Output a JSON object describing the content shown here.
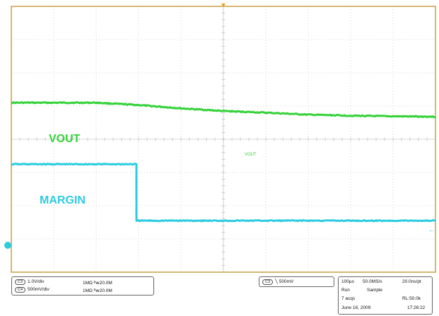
{
  "chart_data": {
    "type": "line",
    "x_unit": "µs",
    "y_unit": "div",
    "x": [
      0,
      100,
      200,
      300,
      400,
      500,
      600,
      700,
      800,
      900,
      1000
    ],
    "series": [
      {
        "name": "VOUT",
        "color": "#35d23a",
        "values": [
          1.1,
          1.1,
          1.1,
          1.03,
          0.93,
          0.85,
          0.8,
          0.74,
          0.71,
          0.69,
          0.68
        ]
      },
      {
        "name": "MARGIN",
        "color": "#2ecce0",
        "values": [
          -0.75,
          -0.75,
          -0.75,
          -2.45,
          -2.45,
          -2.45,
          -2.45,
          -2.45,
          -2.45,
          -2.45,
          -2.45
        ],
        "step_at": 295
      }
    ],
    "xlim": [
      0,
      1000
    ],
    "ylim": [
      -4,
      4
    ],
    "grid": true,
    "annotations": {
      "vout_big": "VOUT",
      "vout_small": "VOUT",
      "margin_big": "MARGIN"
    }
  },
  "status": {
    "ch1_badge": "C3",
    "ch1_scale": "1.0V/div",
    "ch1_imp": "1MΩ",
    "ch1_bw": "20.0M",
    "ch2_badge": "C4",
    "ch2_scale": "500mV/div",
    "ch2_imp": "1MΩ",
    "ch2_bw": "20.0M",
    "trigger_badge": "C3",
    "trigger_level": "500mV",
    "timebase": "100µs",
    "sample_rate": "50.0MS/s",
    "pt_rate": "20.0ns/pt",
    "run": "Run",
    "mode": "Sample",
    "acqs": "7 acqs",
    "rl": "RL:50.0k",
    "date": "June 16, 2009",
    "time": "17:26:22"
  }
}
